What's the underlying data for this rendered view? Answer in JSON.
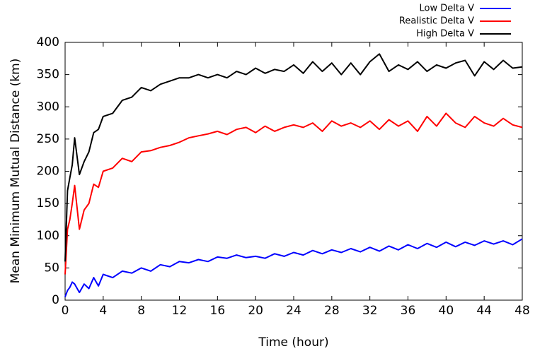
{
  "chart_data": {
    "type": "line",
    "x_label": "Time (hour)",
    "y_label": "Mean Minimum Mutual Distance (km)",
    "x": [
      0,
      0.25,
      0.5,
      0.75,
      1,
      1.5,
      2,
      2.5,
      3,
      3.5,
      4,
      5,
      6,
      7,
      8,
      9,
      10,
      11,
      12,
      13,
      14,
      15,
      16,
      17,
      18,
      19,
      20,
      21,
      22,
      23,
      24,
      25,
      26,
      27,
      28,
      29,
      30,
      31,
      32,
      33,
      34,
      35,
      36,
      37,
      38,
      39,
      40,
      41,
      42,
      43,
      44,
      45,
      46,
      47,
      48
    ],
    "series": [
      {
        "name": "Low Delta V",
        "color": "#0000ff",
        "values": [
          5,
          15,
          20,
          28,
          25,
          12,
          25,
          18,
          35,
          22,
          40,
          35,
          45,
          42,
          50,
          45,
          55,
          52,
          60,
          58,
          63,
          60,
          67,
          65,
          70,
          66,
          68,
          65,
          72,
          68,
          74,
          70,
          77,
          72,
          78,
          74,
          80,
          75,
          82,
          76,
          84,
          78,
          86,
          80,
          88,
          82,
          90,
          83,
          90,
          85,
          92,
          87,
          92,
          86,
          95
        ]
      },
      {
        "name": "Realistic Delta V",
        "color": "#ff0000",
        "values": [
          40,
          110,
          125,
          150,
          178,
          110,
          140,
          150,
          180,
          175,
          200,
          205,
          220,
          215,
          230,
          232,
          237,
          240,
          245,
          252,
          255,
          258,
          262,
          257,
          265,
          268,
          260,
          270,
          262,
          268,
          272,
          268,
          275,
          262,
          278,
          270,
          275,
          268,
          278,
          265,
          280,
          270,
          278,
          262,
          285,
          270,
          290,
          275,
          268,
          285,
          275,
          270,
          282,
          272,
          268
        ]
      },
      {
        "name": "High Delta V",
        "color": "#000000",
        "values": [
          60,
          170,
          190,
          210,
          252,
          195,
          215,
          230,
          260,
          265,
          285,
          290,
          310,
          315,
          330,
          325,
          335,
          340,
          345,
          345,
          350,
          345,
          350,
          345,
          355,
          350,
          360,
          352,
          358,
          355,
          365,
          352,
          370,
          355,
          368,
          350,
          368,
          350,
          370,
          382,
          355,
          365,
          358,
          370,
          355,
          365,
          360,
          368,
          372,
          348,
          370,
          358,
          372,
          360,
          362
        ]
      }
    ],
    "xlim": [
      0,
      48
    ],
    "xticks": [
      0,
      4,
      8,
      12,
      16,
      20,
      24,
      28,
      32,
      36,
      40,
      44,
      48
    ],
    "ylim": [
      0,
      400
    ],
    "yticks": [
      0,
      50,
      100,
      150,
      200,
      250,
      300,
      350,
      400
    ],
    "legend": "top-right"
  }
}
